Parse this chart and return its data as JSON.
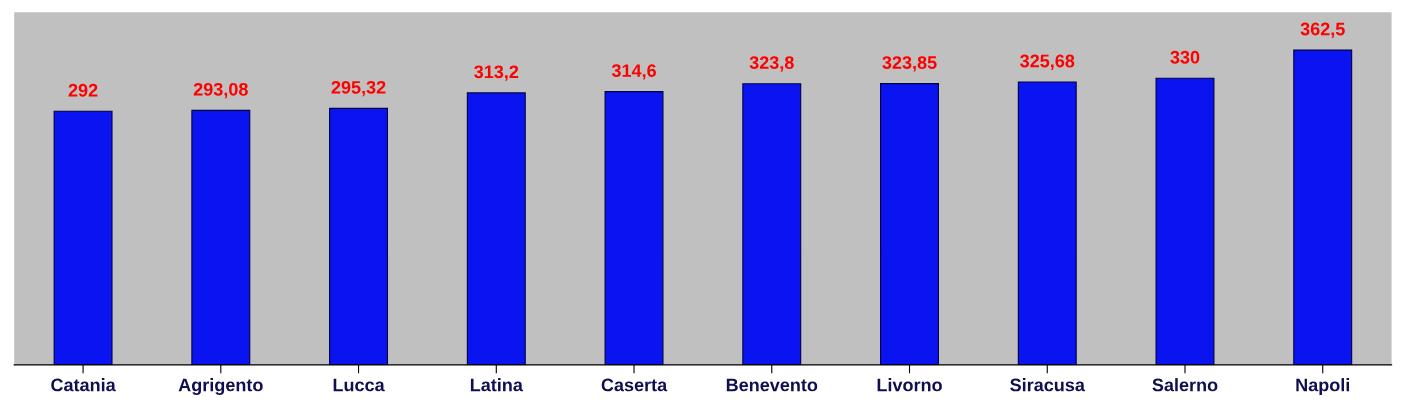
{
  "chart_data": {
    "type": "bar",
    "categories": [
      "Catania",
      "Agrigento",
      "Lucca",
      "Latina",
      "Caserta",
      "Benevento",
      "Livorno",
      "Siracusa",
      "Salerno",
      "Napoli"
    ],
    "values": [
      292,
      293.08,
      295.32,
      313.2,
      314.6,
      323.8,
      323.85,
      325.68,
      330,
      362.5
    ],
    "value_labels": [
      "292",
      "293,08",
      "295,32",
      "313,2",
      "314,6",
      "323,8",
      "323,85",
      "325,68",
      "330",
      "362,5"
    ],
    "color": "#0a14f0",
    "grid": false,
    "legend": false
  }
}
